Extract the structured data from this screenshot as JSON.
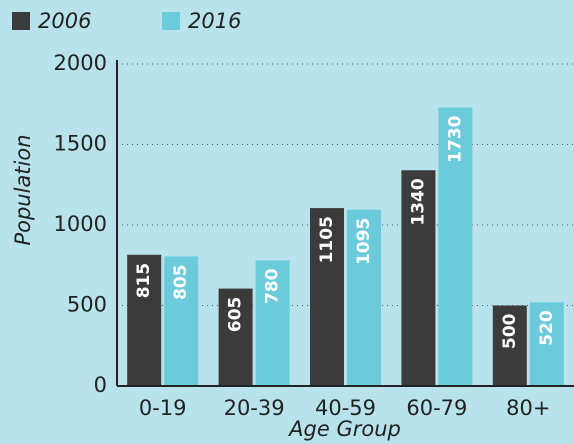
{
  "chart_data": {
    "type": "bar",
    "categories": [
      "0-19",
      "20-39",
      "40-59",
      "60-79",
      "80+"
    ],
    "series": [
      {
        "name": "2006",
        "color": "#3b3b3b",
        "values": [
          815,
          605,
          1105,
          1340,
          500
        ]
      },
      {
        "name": "2016",
        "color": "#6ccbdb",
        "values": [
          805,
          780,
          1095,
          1730,
          520
        ]
      }
    ],
    "ylim": [
      0,
      2000
    ],
    "yticks": [
      0,
      500,
      1000,
      1500,
      2000
    ],
    "grid": true,
    "xlabel": "Age Group",
    "ylabel": "Population",
    "legend": "top-left"
  }
}
